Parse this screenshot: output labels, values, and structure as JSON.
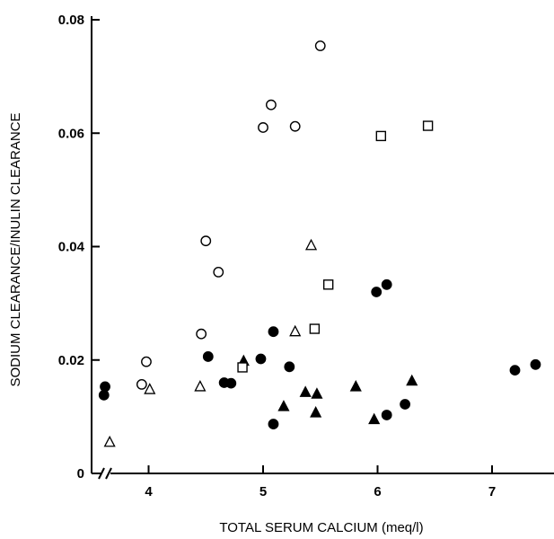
{
  "chart_data": {
    "type": "scatter",
    "title": "",
    "xlabel": "TOTAL SERUM CALCIUM (meq/l)",
    "ylabel": "SODIUM CLEARANCE/INULIN CLEARANCE",
    "xlim": [
      3.6,
      7.5
    ],
    "ylim": [
      0,
      0.08
    ],
    "x_ticks": [
      4,
      5,
      6,
      7
    ],
    "y_ticks": [
      0,
      0.02,
      0.04,
      0.06,
      0.08
    ],
    "x_tick_labels": [
      "4",
      "5",
      "6",
      "7"
    ],
    "y_tick_labels": [
      "0",
      "0.02",
      "0.04",
      "0.06",
      "0.08"
    ],
    "axis_break": "x",
    "grid": false,
    "legend": "none",
    "color": "#000000",
    "series": [
      {
        "marker": "circle-open",
        "points": [
          [
            3.94,
            0.0157
          ],
          [
            3.98,
            0.0197
          ],
          [
            4.46,
            0.0246
          ],
          [
            4.5,
            0.041
          ],
          [
            4.61,
            0.0355
          ],
          [
            5.0,
            0.061
          ],
          [
            5.07,
            0.065
          ],
          [
            5.28,
            0.0612
          ],
          [
            5.5,
            0.0754
          ]
        ]
      },
      {
        "marker": "circle-filled",
        "points": [
          [
            3.61,
            0.0138
          ],
          [
            3.62,
            0.0153
          ],
          [
            4.52,
            0.0206
          ],
          [
            4.66,
            0.016
          ],
          [
            4.72,
            0.0159
          ],
          [
            4.98,
            0.0202
          ],
          [
            5.09,
            0.025
          ],
          [
            5.09,
            0.0087
          ],
          [
            5.23,
            0.0188
          ],
          [
            5.99,
            0.032
          ],
          [
            6.08,
            0.0333
          ],
          [
            6.08,
            0.0103
          ],
          [
            6.24,
            0.0122
          ],
          [
            7.2,
            0.0182
          ],
          [
            7.38,
            0.0192
          ]
        ]
      },
      {
        "marker": "triangle-open",
        "points": [
          [
            3.66,
            0.0055
          ],
          [
            4.01,
            0.0148
          ],
          [
            4.45,
            0.0153
          ],
          [
            5.28,
            0.025
          ],
          [
            5.42,
            0.0402
          ]
        ]
      },
      {
        "marker": "triangle-filled",
        "points": [
          [
            4.83,
            0.0198
          ],
          [
            5.18,
            0.0118
          ],
          [
            5.37,
            0.0143
          ],
          [
            5.47,
            0.014
          ],
          [
            5.46,
            0.0107
          ],
          [
            5.81,
            0.0153
          ],
          [
            5.97,
            0.0095
          ],
          [
            6.3,
            0.0163
          ]
        ]
      },
      {
        "marker": "square-open",
        "points": [
          [
            4.82,
            0.0187
          ],
          [
            5.45,
            0.0255
          ],
          [
            5.57,
            0.0333
          ],
          [
            6.03,
            0.0595
          ],
          [
            6.44,
            0.0613
          ]
        ]
      }
    ]
  }
}
